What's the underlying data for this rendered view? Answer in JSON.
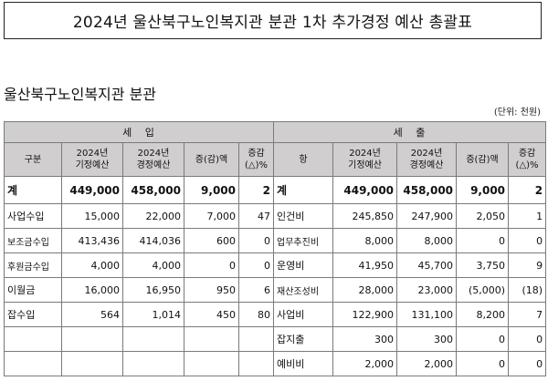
{
  "title": "2024년 울산북구노인복지관 분관 1차 추가경정 예산 총괄표",
  "section_title": "울산북구노인복지관 분관",
  "unit_note": "(단위: 천원)",
  "income": {
    "header": "세   입",
    "columns": [
      "구분",
      "2024년\n기정예산",
      "2024년\n경정예산",
      "증(감)액",
      "증감\n(△)%"
    ]
  },
  "expense": {
    "header": "세   출",
    "columns": [
      "항",
      "2024년\n기정예산",
      "2024년\n경정예산",
      "증(감)액",
      "증감\n(△)%"
    ]
  },
  "rows": [
    {
      "in": [
        "계",
        "449,000",
        "458,000",
        "9,000",
        "2"
      ],
      "out": [
        "계",
        "449,000",
        "458,000",
        "9,000",
        "2"
      ]
    },
    {
      "in": [
        "사업수입",
        "15,000",
        "22,000",
        "7,000",
        "47"
      ],
      "out": [
        "인건비",
        "245,850",
        "247,900",
        "2,050",
        "1"
      ]
    },
    {
      "in": [
        "보조금수입",
        "413,436",
        "414,036",
        "600",
        "0"
      ],
      "out": [
        "업무추진비",
        "8,000",
        "8,000",
        "0",
        "0"
      ]
    },
    {
      "in": [
        "후원금수입",
        "4,000",
        "4,000",
        "0",
        "0"
      ],
      "out": [
        "운영비",
        "41,950",
        "45,700",
        "3,750",
        "9"
      ]
    },
    {
      "in": [
        "이월금",
        "16,000",
        "16,950",
        "950",
        "6"
      ],
      "out": [
        "재산조성비",
        "28,000",
        "23,000",
        "(5,000)",
        "(18)"
      ]
    },
    {
      "in": [
        "잡수입",
        "564",
        "1,014",
        "450",
        "80"
      ],
      "out": [
        "사업비",
        "122,900",
        "131,100",
        "8,200",
        "7"
      ]
    },
    {
      "in": [
        "",
        "",
        "",
        "",
        ""
      ],
      "out": [
        "잡지출",
        "300",
        "300",
        "0",
        "0"
      ]
    },
    {
      "in": [
        "",
        "",
        "",
        "",
        ""
      ],
      "out": [
        "예비비",
        "2,000",
        "2,000",
        "0",
        "0"
      ]
    }
  ]
}
